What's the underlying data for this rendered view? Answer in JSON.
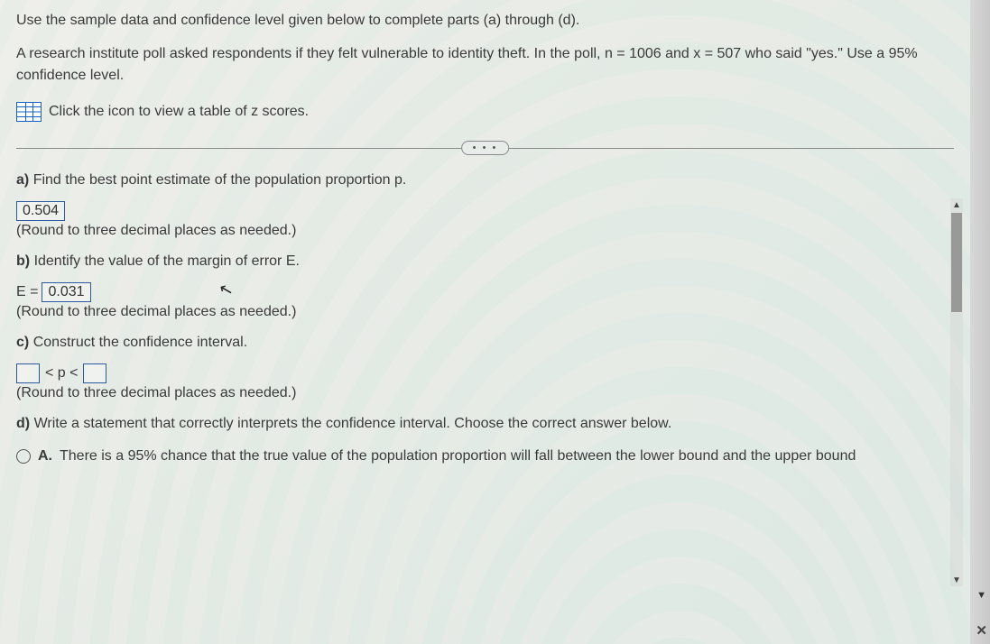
{
  "intro": "Use the sample data and confidence level given below to complete parts (a) through (d).",
  "problem": "A research institute poll asked respondents if they felt vulnerable to identity theft. In the poll, n = 1006 and x = 507 who said \"yes.\" Use a 95% confidence level.",
  "z_link": "Click the icon to view a table of z scores.",
  "ellipsis": "• • •",
  "parts": {
    "a": {
      "label": "a)",
      "q": "Find the best point estimate of the population proportion p.",
      "ans": "0.504",
      "hint": "(Round to three decimal places as needed.)"
    },
    "b": {
      "label": "b)",
      "q": "Identify the value of the margin of error E.",
      "e_prefix": "E =",
      "ans": "0.031",
      "hint": "(Round to three decimal places as needed.)"
    },
    "c": {
      "label": "c)",
      "q": "Construct the confidence interval.",
      "lt1": "< p <",
      "hint": "(Round to three decimal places as needed.)"
    },
    "d": {
      "label": "d)",
      "q": "Write a statement that correctly interprets the confidence interval. Choose the correct answer below.",
      "choice_a_label": "A.",
      "choice_a": "There is a 95% chance that the true value of the population proportion will fall between the lower bound and the upper bound"
    }
  },
  "colors": {
    "text": "#3a3a3a",
    "box_border": "#2a5aa0",
    "icon_border": "#1565c0"
  }
}
